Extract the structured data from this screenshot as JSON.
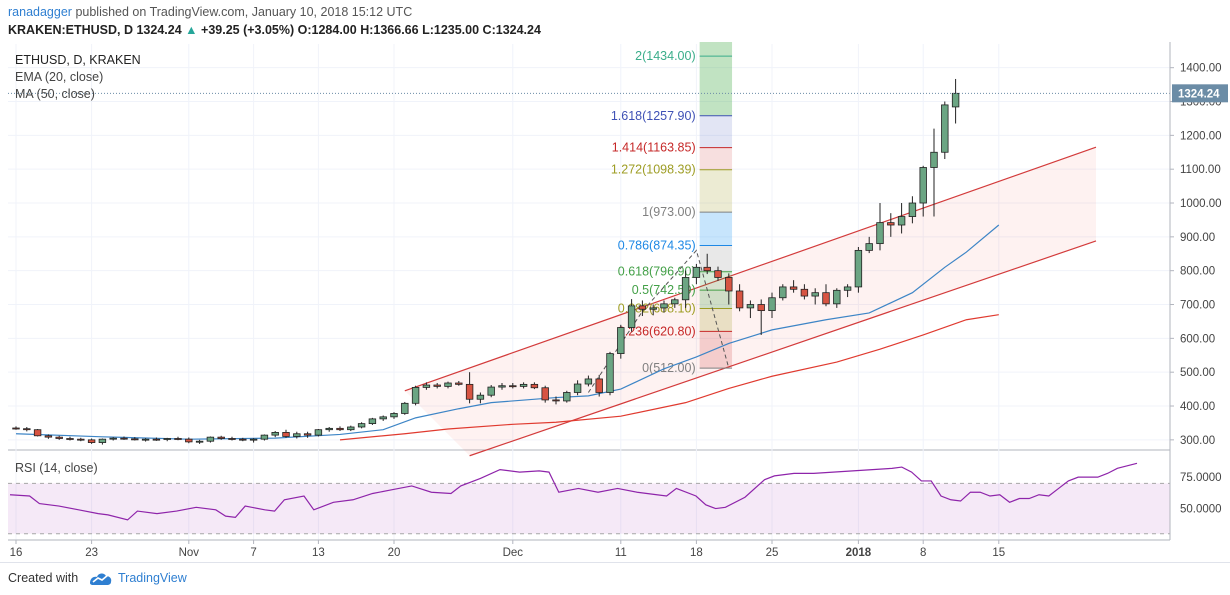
{
  "header": {
    "author": "ranadagger",
    "published_text": "published on TradingView.com, January 10, 2018 15:12 UTC",
    "symbol": "KRAKEN:ETHUSD, D",
    "last": "1324.24",
    "change_arrow": "▲",
    "change": "+39.25 (+3.05%)",
    "o_label": "O:",
    "o_value": "1284.00",
    "h_label": "H:",
    "h_value": "1366.66",
    "l_label": "L:",
    "l_value": "1235.00",
    "c_label": "C:",
    "c_value": "1324.24"
  },
  "legend": {
    "title": "ETHUSD, D, KRAKEN",
    "ema": "EMA (20, close)",
    "ma": "MA (50, close)",
    "rsi": "RSI (14, close)"
  },
  "footer": {
    "created_with": "Created with",
    "brand": "TradingView"
  },
  "colors": {
    "up": "#6ba583",
    "down": "#d75442",
    "ema": "#3d85c6",
    "ma": "#e03a2f",
    "rsi": "#8e24aa",
    "channel": "#d33b3b",
    "link": "#2f7fd1"
  },
  "chart_data": {
    "type": "candlestick",
    "price_axis": {
      "ticks": [
        "1400.00",
        "1300.00",
        "1200.00",
        "1100.00",
        "1000.00",
        "900.00",
        "800.00",
        "700.00",
        "600.00",
        "500.00",
        "400.00",
        "300.00"
      ],
      "ylim": [
        270,
        1470
      ]
    },
    "last_price_label": "1324.24",
    "x_axis": {
      "ticks": [
        {
          "label": "16",
          "i": 0
        },
        {
          "label": "23",
          "i": 7
        },
        {
          "label": "Nov",
          "i": 16
        },
        {
          "label": "7",
          "i": 22
        },
        {
          "label": "13",
          "i": 28
        },
        {
          "label": "20",
          "i": 35
        },
        {
          "label": "Dec",
          "i": 46
        },
        {
          "label": "11",
          "i": 56
        },
        {
          "label": "18",
          "i": 63
        },
        {
          "label": "25",
          "i": 70
        },
        {
          "label": "2018",
          "i": 78
        },
        {
          "label": "8",
          "i": 84
        },
        {
          "label": "15",
          "i": 91
        }
      ]
    },
    "ohlc": [
      [
        335,
        340,
        330,
        333
      ],
      [
        333,
        338,
        325,
        330
      ],
      [
        330,
        332,
        310,
        312
      ],
      [
        312,
        316,
        303,
        308
      ],
      [
        308,
        312,
        300,
        304
      ],
      [
        304,
        309,
        298,
        302
      ],
      [
        302,
        306,
        296,
        300
      ],
      [
        300,
        304,
        288,
        292
      ],
      [
        292,
        304,
        286,
        302
      ],
      [
        302,
        308,
        298,
        305
      ],
      [
        305,
        310,
        300,
        303
      ],
      [
        303,
        308,
        298,
        300
      ],
      [
        300,
        305,
        295,
        302
      ],
      [
        302,
        307,
        297,
        301
      ],
      [
        301,
        306,
        296,
        304
      ],
      [
        304,
        309,
        299,
        302
      ],
      [
        302,
        307,
        290,
        294
      ],
      [
        294,
        300,
        288,
        296
      ],
      [
        296,
        310,
        292,
        308
      ],
      [
        308,
        312,
        300,
        304
      ],
      [
        304,
        309,
        298,
        302
      ],
      [
        302,
        306,
        296,
        300
      ],
      [
        300,
        305,
        292,
        302
      ],
      [
        302,
        316,
        298,
        314
      ],
      [
        314,
        326,
        308,
        322
      ],
      [
        322,
        330,
        306,
        310
      ],
      [
        310,
        324,
        304,
        318
      ],
      [
        318,
        324,
        306,
        314
      ],
      [
        314,
        332,
        310,
        330
      ],
      [
        330,
        338,
        324,
        334
      ],
      [
        334,
        340,
        326,
        330
      ],
      [
        330,
        342,
        326,
        338
      ],
      [
        338,
        352,
        334,
        348
      ],
      [
        348,
        365,
        344,
        362
      ],
      [
        362,
        372,
        356,
        368
      ],
      [
        368,
        382,
        362,
        378
      ],
      [
        378,
        412,
        374,
        408
      ],
      [
        408,
        460,
        402,
        455
      ],
      [
        455,
        470,
        448,
        462
      ],
      [
        462,
        468,
        452,
        458
      ],
      [
        458,
        472,
        452,
        468
      ],
      [
        468,
        474,
        460,
        464
      ],
      [
        464,
        500,
        408,
        420
      ],
      [
        420,
        440,
        408,
        432
      ],
      [
        432,
        462,
        426,
        456
      ],
      [
        456,
        468,
        448,
        460
      ],
      [
        460,
        468,
        452,
        458
      ],
      [
        458,
        470,
        452,
        464
      ],
      [
        464,
        470,
        450,
        454
      ],
      [
        454,
        460,
        410,
        418
      ],
      [
        418,
        428,
        405,
        415
      ],
      [
        415,
        445,
        410,
        440
      ],
      [
        440,
        476,
        432,
        465
      ],
      [
        465,
        490,
        458,
        480
      ],
      [
        480,
        492,
        428,
        440
      ],
      [
        440,
        560,
        432,
        555
      ],
      [
        555,
        640,
        540,
        632
      ],
      [
        632,
        716,
        620,
        696
      ],
      [
        696,
        712,
        666,
        686
      ],
      [
        686,
        700,
        668,
        690
      ],
      [
        690,
        712,
        676,
        702
      ],
      [
        702,
        720,
        690,
        714
      ],
      [
        714,
        800,
        690,
        780
      ],
      [
        780,
        820,
        760,
        810
      ],
      [
        810,
        850,
        790,
        800
      ],
      [
        800,
        812,
        770,
        780
      ],
      [
        780,
        792,
        700,
        740
      ],
      [
        740,
        760,
        680,
        690
      ],
      [
        690,
        712,
        660,
        700
      ],
      [
        700,
        715,
        610,
        682
      ],
      [
        682,
        735,
        660,
        720
      ],
      [
        720,
        760,
        712,
        752
      ],
      [
        752,
        772,
        735,
        745
      ],
      [
        745,
        760,
        715,
        725
      ],
      [
        725,
        748,
        700,
        735
      ],
      [
        735,
        760,
        695,
        702
      ],
      [
        702,
        748,
        690,
        742
      ],
      [
        742,
        760,
        722,
        752
      ],
      [
        752,
        870,
        735,
        860
      ],
      [
        860,
        900,
        852,
        880
      ],
      [
        880,
        1000,
        860,
        942
      ],
      [
        942,
        970,
        900,
        935
      ],
      [
        935,
        1000,
        910,
        960
      ],
      [
        960,
        1020,
        940,
        1000
      ],
      [
        1000,
        1110,
        960,
        1105
      ],
      [
        1105,
        1220,
        960,
        1150
      ],
      [
        1150,
        1300,
        1130,
        1290
      ],
      [
        1284,
        1366.66,
        1235,
        1324.24
      ]
    ],
    "ema20": [
      [
        0,
        318
      ],
      [
        8,
        309
      ],
      [
        16,
        302
      ],
      [
        24,
        305
      ],
      [
        30,
        316
      ],
      [
        34,
        330
      ],
      [
        37,
        365
      ],
      [
        41,
        392
      ],
      [
        44,
        410
      ],
      [
        50,
        425
      ],
      [
        53,
        430
      ],
      [
        56,
        450
      ],
      [
        60,
        510
      ],
      [
        63,
        545
      ],
      [
        66,
        585
      ],
      [
        70,
        625
      ],
      [
        75,
        655
      ],
      [
        79,
        675
      ],
      [
        83,
        735
      ],
      [
        86,
        810
      ],
      [
        88,
        855
      ],
      [
        91,
        935
      ]
    ],
    "ma50": [
      [
        30,
        300
      ],
      [
        36,
        318
      ],
      [
        40,
        332
      ],
      [
        46,
        346
      ],
      [
        50,
        352
      ],
      [
        56,
        370
      ],
      [
        62,
        410
      ],
      [
        66,
        452
      ],
      [
        70,
        488
      ],
      [
        76,
        530
      ],
      [
        80,
        568
      ],
      [
        84,
        610
      ],
      [
        88,
        655
      ],
      [
        91,
        670
      ]
    ],
    "channel": {
      "upper": [
        [
          36,
          445
        ],
        [
          100,
          1165
        ]
      ],
      "lower": [
        [
          42,
          253
        ],
        [
          100,
          888
        ]
      ]
    },
    "fibonacci": {
      "levels": [
        {
          "label": "2(1434.00)",
          "value": 1434.0,
          "color": "#3aad8a"
        },
        {
          "label": "1.618(1257.90)",
          "value": 1257.9,
          "color": "#3f51b5"
        },
        {
          "label": "1.414(1163.85)",
          "value": 1163.85,
          "color": "#c62828"
        },
        {
          "label": "1.272(1098.39)",
          "value": 1098.39,
          "color": "#9e9d24"
        },
        {
          "label": "1(973.00)",
          "value": 973.0,
          "color": "#808080"
        },
        {
          "label": "0.786(874.35)",
          "value": 874.35,
          "color": "#1e88e5"
        },
        {
          "label": "0.618(796.90)",
          "value": 796.9,
          "color": "#43a047"
        },
        {
          "label": "0.5(742.50)",
          "value": 742.5,
          "color": "#43a047"
        },
        {
          "label": "0.382(688.10)",
          "value": 688.1,
          "color": "#9e9d24"
        },
        {
          "label": "0.236(620.80)",
          "value": 620.8,
          "color": "#c62828"
        },
        {
          "label": "0(512.00)",
          "value": 512.0,
          "color": "#808080"
        }
      ]
    },
    "rsi": {
      "ticks": [
        "75.0000",
        "50.0000"
      ],
      "ylim": [
        25,
        95
      ],
      "bands": [
        70,
        30
      ],
      "values": [
        [
          0,
          61
        ],
        [
          2,
          60
        ],
        [
          3,
          54
        ],
        [
          5,
          52
        ],
        [
          7,
          49
        ],
        [
          9,
          46
        ],
        [
          10,
          45
        ],
        [
          12,
          41
        ],
        [
          13,
          48
        ],
        [
          15,
          46
        ],
        [
          17,
          48
        ],
        [
          19,
          51
        ],
        [
          21,
          49
        ],
        [
          22,
          44
        ],
        [
          23,
          43
        ],
        [
          24,
          52
        ],
        [
          26,
          49
        ],
        [
          27,
          48
        ],
        [
          28,
          57
        ],
        [
          30,
          60
        ],
        [
          31,
          49
        ],
        [
          33,
          55
        ],
        [
          35,
          57
        ],
        [
          37,
          62
        ],
        [
          39,
          65
        ],
        [
          41,
          68
        ],
        [
          43,
          63
        ],
        [
          45,
          62
        ],
        [
          46,
          68
        ],
        [
          48,
          74
        ],
        [
          50,
          81
        ],
        [
          52,
          79
        ],
        [
          54,
          80
        ],
        [
          55,
          79
        ],
        [
          56,
          63
        ],
        [
          58,
          66
        ],
        [
          60,
          63
        ],
        [
          62,
          66
        ],
        [
          64,
          63
        ],
        [
          66,
          61
        ],
        [
          67,
          60
        ],
        [
          68,
          66
        ],
        [
          70,
          60
        ],
        [
          71,
          53
        ],
        [
          72,
          50
        ],
        [
          73,
          51
        ],
        [
          75,
          59
        ],
        [
          77,
          73
        ],
        [
          78,
          76
        ],
        [
          80,
          78
        ],
        [
          82,
          78
        ],
        [
          84,
          79
        ],
        [
          86,
          80
        ],
        [
          88,
          81
        ],
        [
          90,
          82
        ],
        [
          91,
          83
        ],
        [
          92,
          79
        ],
        [
          93,
          72
        ],
        [
          94,
          72
        ],
        [
          95,
          60
        ],
        [
          96,
          57
        ],
        [
          97,
          56
        ],
        [
          98,
          63
        ],
        [
          99,
          63
        ],
        [
          100,
          60
        ],
        [
          101,
          61
        ],
        [
          102,
          55
        ],
        [
          103,
          58
        ],
        [
          104,
          58
        ],
        [
          105,
          61
        ],
        [
          106,
          60
        ],
        [
          107,
          66
        ],
        [
          108,
          72
        ],
        [
          109,
          75
        ],
        [
          110,
          75
        ],
        [
          111,
          75
        ],
        [
          112,
          78
        ],
        [
          113,
          82
        ],
        [
          114,
          84
        ],
        [
          115,
          86
        ]
      ]
    }
  }
}
